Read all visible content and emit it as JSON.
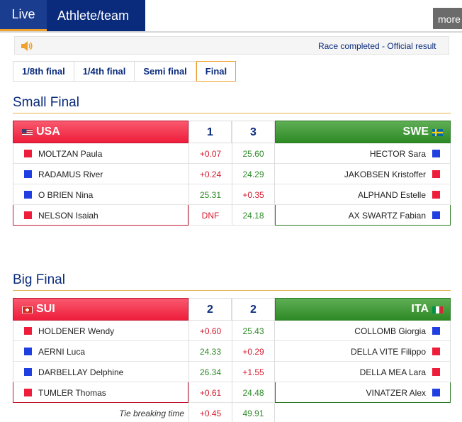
{
  "tabs": [
    {
      "label": "Live",
      "active": true
    },
    {
      "label": "Athlete/team",
      "active": false
    }
  ],
  "more_label": "more",
  "status": {
    "text": "Race completed - Official result",
    "icon": "speaker-icon"
  },
  "rounds": [
    {
      "label": "1/8th final"
    },
    {
      "label": "1/4th final"
    },
    {
      "label": "Semi final"
    },
    {
      "label": "Final",
      "active": true
    }
  ],
  "colors": {
    "home_red": "#ee1d3b",
    "away_green": "#2d8a25",
    "navy": "#0a2b7c",
    "accent": "#f0a12b"
  },
  "small_final": {
    "title": "Small Final",
    "home": {
      "team": "USA",
      "flag": "usa-flag",
      "score": "1"
    },
    "away": {
      "team": "SWE",
      "flag": "sweden-flag",
      "score": "3"
    },
    "rows": [
      {
        "home_name": "MOLTZAN Paula",
        "home_color": "red",
        "t1": "+0.07",
        "t1_color": "red",
        "t2": "25.60",
        "t2_color": "green",
        "away_name": "HECTOR Sara",
        "away_color": "blue"
      },
      {
        "home_name": "RADAMUS River",
        "home_color": "blue",
        "t1": "+0.24",
        "t1_color": "red",
        "t2": "24.29",
        "t2_color": "green",
        "away_name": "JAKOBSEN Kristoffer",
        "away_color": "red"
      },
      {
        "home_name": "O BRIEN Nina",
        "home_color": "blue",
        "t1": "25.31",
        "t1_color": "green",
        "t2": "+0.35",
        "t2_color": "red",
        "away_name": "ALPHAND Estelle",
        "away_color": "red"
      },
      {
        "home_name": "NELSON Isaiah",
        "home_color": "red",
        "t1": "DNF",
        "t1_color": "red",
        "t2": "24.18",
        "t2_color": "green",
        "away_name": "AX SWARTZ Fabian",
        "away_color": "blue"
      }
    ]
  },
  "big_final": {
    "title": "Big Final",
    "home": {
      "team": "SUI",
      "flag": "switzerland-flag",
      "score": "2"
    },
    "away": {
      "team": "ITA",
      "flag": "italy-flag",
      "score": "2"
    },
    "rows": [
      {
        "home_name": "HOLDENER Wendy",
        "home_color": "red",
        "t1": "+0.60",
        "t1_color": "red",
        "t2": "25.43",
        "t2_color": "green",
        "away_name": "COLLOMB Giorgia",
        "away_color": "blue"
      },
      {
        "home_name": "AERNI Luca",
        "home_color": "blue",
        "t1": "24.33",
        "t1_color": "green",
        "t2": "+0.29",
        "t2_color": "red",
        "away_name": "DELLA VITE Filippo",
        "away_color": "red"
      },
      {
        "home_name": "DARBELLAY Delphine",
        "home_color": "blue",
        "t1": "26.34",
        "t1_color": "green",
        "t2": "+1.55",
        "t2_color": "red",
        "away_name": "DELLA MEA Lara",
        "away_color": "red"
      },
      {
        "home_name": "TUMLER Thomas",
        "home_color": "red",
        "t1": "+0.61",
        "t1_color": "red",
        "t2": "24.48",
        "t2_color": "green",
        "away_name": "VINATZER Alex",
        "away_color": "blue"
      }
    ],
    "tie": {
      "label": "Tie breaking time",
      "t1": "+0.45",
      "t1_color": "red",
      "t2": "49.91",
      "t2_color": "green"
    }
  }
}
